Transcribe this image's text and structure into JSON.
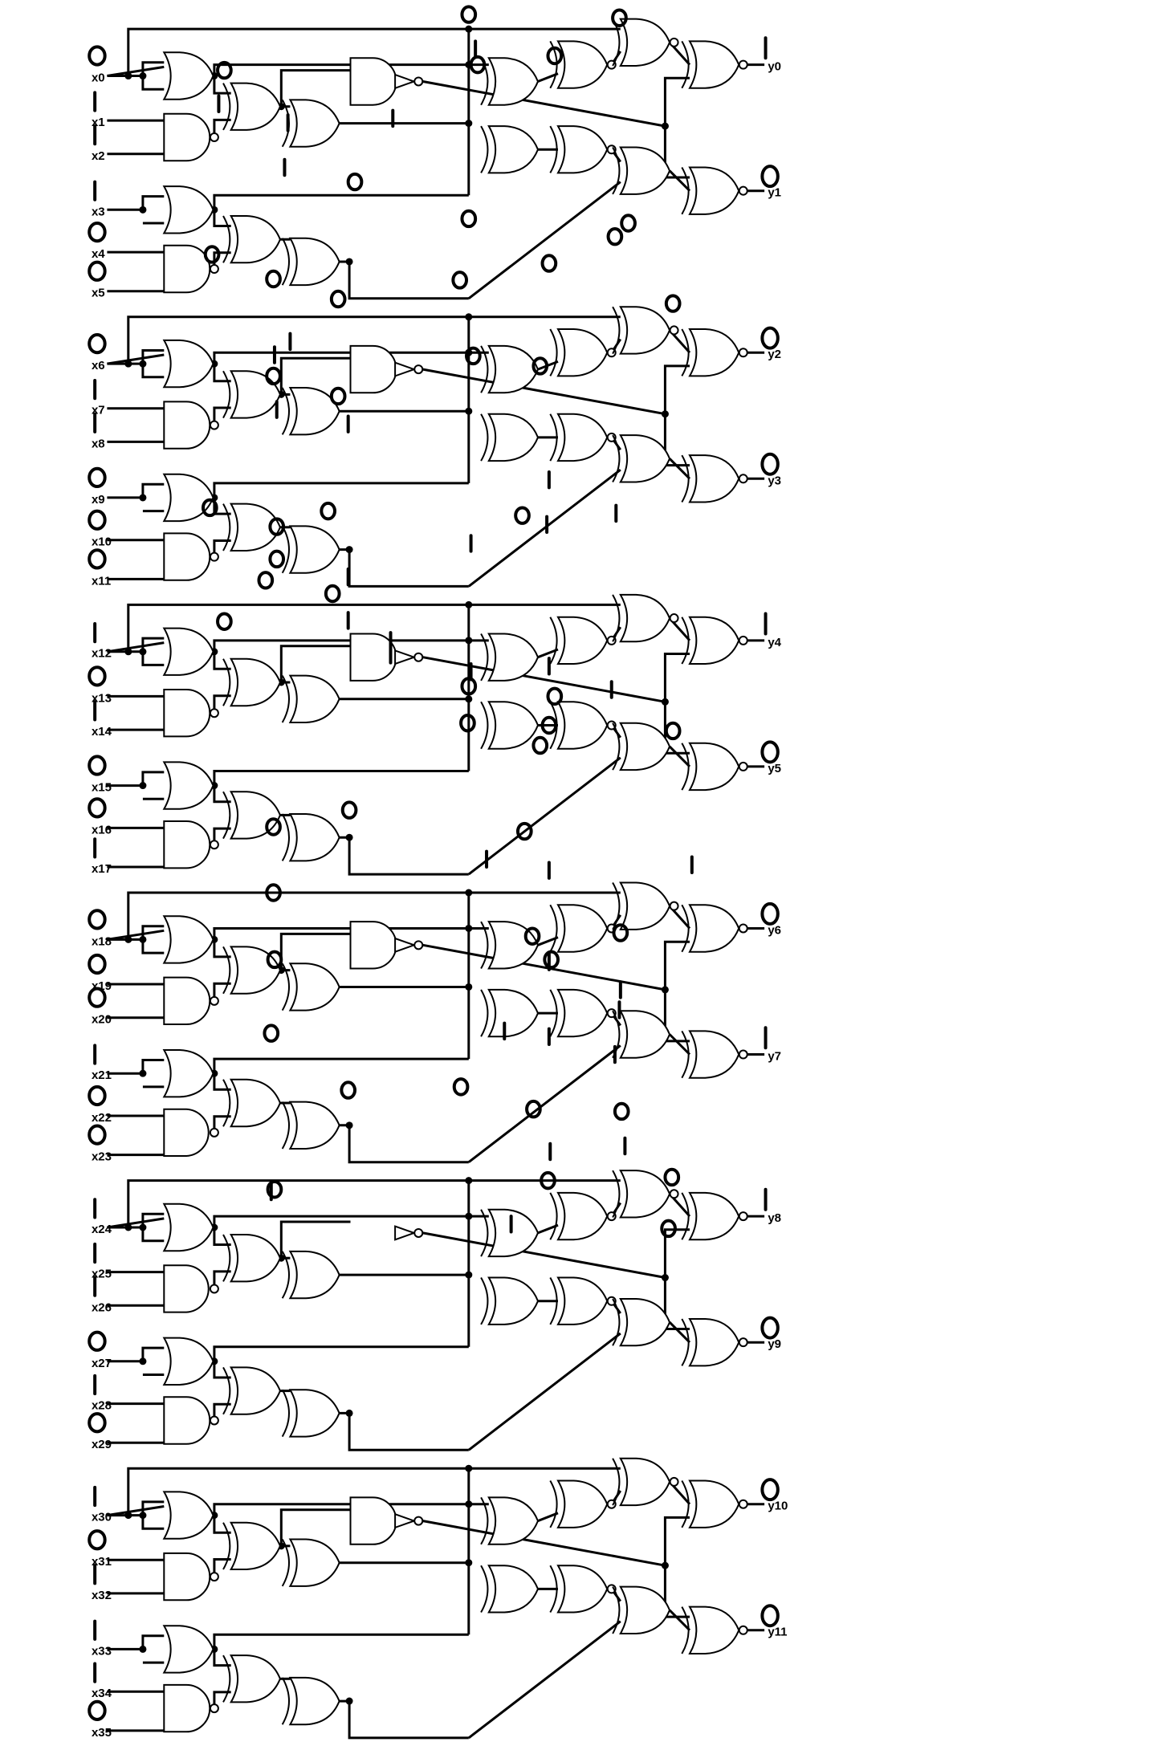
{
  "circuit": {
    "inputs": [
      "x0",
      "x1",
      "x2",
      "x3",
      "x4",
      "x5",
      "x6",
      "x7",
      "x8",
      "x9",
      "x10",
      "x11",
      "x12",
      "x13",
      "x14",
      "x15",
      "x16",
      "x17",
      "x18",
      "x19",
      "x20",
      "x21",
      "x22",
      "x23",
      "x24",
      "x25",
      "x26",
      "x27",
      "x28",
      "x29",
      "x30",
      "x31",
      "x32",
      "x33",
      "x34",
      "x35"
    ],
    "outputs": [
      "y0",
      "y1",
      "y2",
      "y3",
      "y4",
      "y5",
      "y6",
      "y7",
      "y8",
      "y9",
      "y10",
      "y11"
    ],
    "input_marks": [
      "O",
      "I",
      "I",
      "I",
      "O",
      "O",
      "O",
      "I",
      "I",
      "O",
      "O",
      "O",
      "I",
      "O",
      "I",
      "O",
      "O",
      "I",
      "O",
      "O",
      "O",
      "I",
      "O",
      "O",
      "I",
      "I",
      "I",
      "O",
      "I",
      "O",
      "I",
      "O",
      "I",
      "I",
      "I",
      "O"
    ],
    "output_marks": [
      "I",
      "O",
      "O",
      "O",
      "I",
      "O",
      "O",
      "I",
      "I",
      "O",
      "O",
      "O"
    ]
  }
}
